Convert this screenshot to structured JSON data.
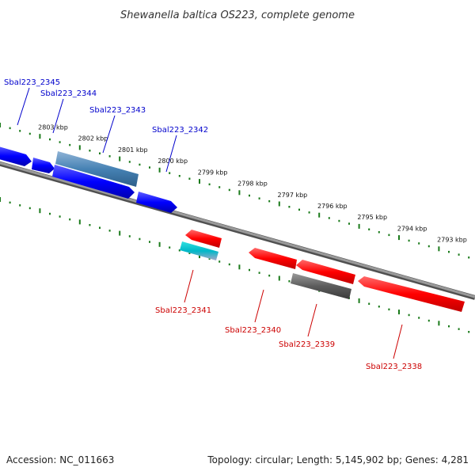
{
  "title": "Shewanella baltica OS223, complete genome",
  "footer": {
    "accession": "Accession: NC_011663",
    "topology": "Topology: circular; Length: 5,145,902 bp; Genes: 4,281"
  },
  "colors": {
    "forward_gene": "#0000ff",
    "reverse_gene": "#ff0000",
    "rna_gene": "#4682b4",
    "pseudo_gene": "#606060",
    "forward_label": "#0000cc",
    "reverse_label": "#cc0000",
    "scale_ticks": "#1a7a1a",
    "backbone": "#808080"
  },
  "scale": {
    "unit": "kbp",
    "labels": [
      "2803 kbp",
      "2802 kbp",
      "2801 kbp",
      "2800 kbp",
      "2799 kbp",
      "2798 kbp",
      "2797 kbp",
      "2796 kbp",
      "2795 kbp",
      "2794 kbp",
      "2793 kbp"
    ]
  },
  "forward_genes": [
    {
      "label": "Sbal223_2345",
      "type": "cds"
    },
    {
      "label": "Sbal223_2344",
      "type": "cds"
    },
    {
      "label": "Sbal223_2343",
      "type": "rna"
    },
    {
      "label": "Sbal223_2342",
      "type": "cds"
    }
  ],
  "reverse_genes": [
    {
      "label": "Sbal223_2341",
      "type": "cds"
    },
    {
      "label": "Sbal223_2340",
      "type": "cds"
    },
    {
      "label": "Sbal223_2339",
      "type": "pseudo"
    },
    {
      "label": "Sbal223_2338",
      "type": "cds"
    }
  ]
}
